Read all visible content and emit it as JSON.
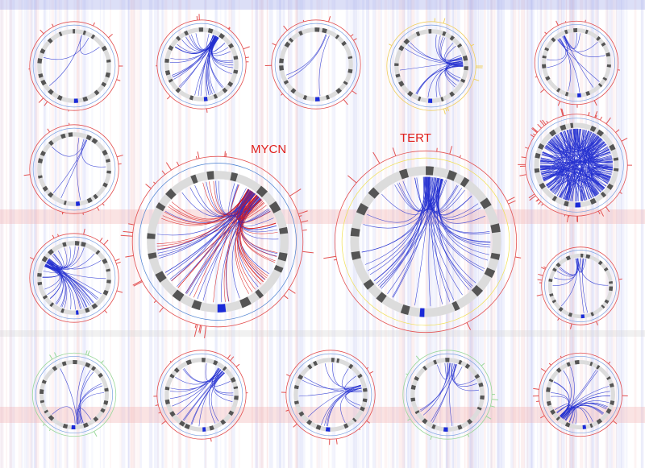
{
  "labels": {
    "mycn": "MYCN",
    "tert": "TERT"
  }
}
